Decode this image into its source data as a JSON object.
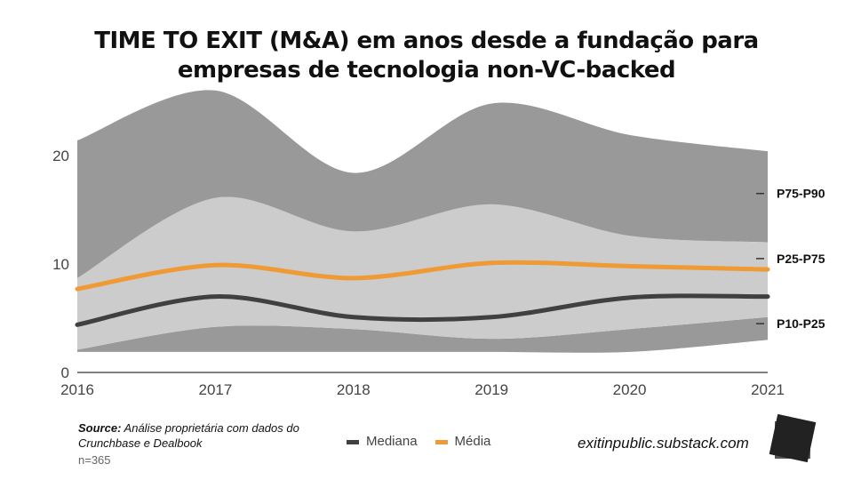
{
  "chart_data": {
    "type": "area",
    "title": "TIME TO EXIT (M&A) em anos desde a fundação para empresas de tecnologia non-VC-backed",
    "title_lines": [
      "TIME TO EXIT (M&A) em anos desde a fundação para",
      "empresas de tecnologia non-VC-backed"
    ],
    "x": [
      "2016",
      "2017",
      "2018",
      "2019",
      "2020",
      "2021"
    ],
    "ylim": [
      0,
      26
    ],
    "yticks": [
      "0",
      "10",
      "20"
    ],
    "bands": [
      {
        "name": "P10-P25",
        "lower": [
          1.9,
          1.9,
          1.9,
          1.9,
          1.9,
          3.0
        ],
        "upper": [
          2.1,
          4.2,
          4.0,
          3.1,
          4.0,
          5.1
        ],
        "color": "#999999"
      },
      {
        "name": "P25-P75",
        "lower": [
          2.1,
          4.2,
          4.0,
          3.1,
          4.0,
          5.1
        ],
        "upper": [
          8.7,
          16.1,
          13.0,
          15.5,
          12.6,
          12.0
        ],
        "color": "#cccccc"
      },
      {
        "name": "P75-P90",
        "lower": [
          8.7,
          16.1,
          13.0,
          15.5,
          12.6,
          12.0
        ],
        "upper": [
          21.4,
          26.0,
          18.4,
          24.8,
          21.9,
          20.4
        ],
        "color": "#999999"
      }
    ],
    "band_labels": [
      {
        "text": "P75-P90",
        "y": 16.5
      },
      {
        "text": "P25-P75",
        "y": 10.5
      },
      {
        "text": "P10-P25",
        "y": 4.5
      }
    ],
    "series": [
      {
        "name": "Mediana",
        "values": [
          4.4,
          7.0,
          5.1,
          5.1,
          6.9,
          7.0
        ],
        "color": "#404040"
      },
      {
        "name": "Média",
        "values": [
          7.7,
          9.9,
          8.7,
          10.1,
          9.8,
          9.5
        ],
        "color": "#ef9a35"
      }
    ],
    "legend": "bottom-center"
  },
  "footer": {
    "source_label": "Source:",
    "source_text": "Análise proprietária com dados do Crunchbase e Dealbook",
    "n": "n=365",
    "site": "exitinpublic.substack.com"
  }
}
